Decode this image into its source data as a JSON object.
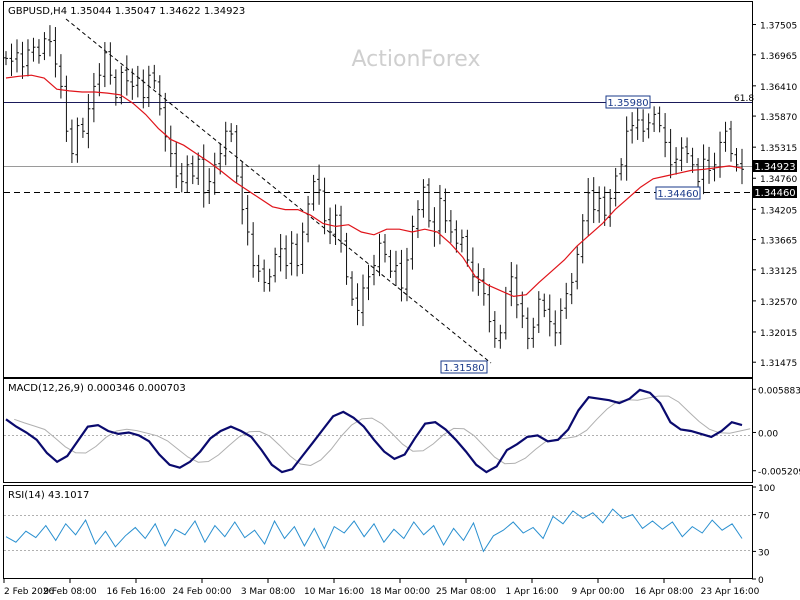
{
  "chart_data": {
    "type": "ohlc",
    "symbol_header": "GBPUSD,H4  1.35044 1.35047 1.34622 1.34923",
    "watermark": "ActionForex",
    "price_axis": {
      "range": [
        1.313,
        1.378
      ],
      "ticks": [
        "1.37505",
        "1.36965",
        "1.36410",
        "1.35870",
        "1.35315",
        "1.34760",
        "1.34205",
        "1.33665",
        "1.33125",
        "1.32570",
        "1.32015",
        "1.31475"
      ]
    },
    "x_labels": [
      "2 Feb 2026",
      "9 Feb 08:00",
      "16 Feb 16:00",
      "24 Feb 00:00",
      "3 Mar 08:00",
      "10 Mar 16:00",
      "18 Mar 00:00",
      "25 Mar 08:00",
      "1 Apr 16:00",
      "9 Apr 00:00",
      "16 Apr 08:00",
      "23 Apr 16:00"
    ],
    "series": [
      {
        "name": "close",
        "color": "#000000",
        "values": [
          1.369,
          1.3685,
          1.37,
          1.3675,
          1.3705,
          1.371,
          1.3695,
          1.3725,
          1.372,
          1.368,
          1.364,
          1.356,
          1.352,
          1.357,
          1.356,
          1.36,
          1.364,
          1.366,
          1.37,
          1.366,
          1.362,
          1.3665,
          1.365,
          1.364,
          1.3655,
          1.362,
          1.366,
          1.365,
          1.36,
          1.355,
          1.352,
          1.348,
          1.347,
          1.35,
          1.348,
          1.351,
          1.345,
          1.347,
          1.35,
          1.352,
          1.356,
          1.3555,
          1.348,
          1.342,
          1.338,
          1.332,
          1.331,
          1.329,
          1.33,
          1.334,
          1.335,
          1.332,
          1.336,
          1.332,
          1.338,
          1.343,
          1.347,
          1.3455,
          1.34,
          1.338,
          1.341,
          1.336,
          1.33,
          1.326,
          1.324,
          1.328,
          1.33,
          1.332,
          1.336,
          1.334,
          1.331,
          1.332,
          1.328,
          1.333,
          1.339,
          1.342,
          1.346,
          1.34,
          1.338,
          1.344,
          1.34,
          1.338,
          1.336,
          1.337,
          1.333,
          1.33,
          1.329,
          1.327,
          1.322,
          1.319,
          1.32,
          1.327,
          1.33,
          1.325,
          1.323,
          1.319,
          1.321,
          1.326,
          1.324,
          1.322,
          1.32,
          1.324,
          1.327,
          1.329,
          1.334,
          1.34,
          1.345,
          1.342,
          1.344,
          1.341,
          1.344,
          1.348,
          1.35,
          1.356,
          1.357,
          1.358,
          1.356,
          1.3575,
          1.359,
          1.357,
          1.354,
          1.35,
          1.351,
          1.353,
          1.352,
          1.35,
          1.347,
          1.351,
          1.349,
          1.35,
          1.354,
          1.356,
          1.352,
          1.35,
          1.3492
        ]
      },
      {
        "name": "sma",
        "color": "#e0141a",
        "values": [
          1.3655,
          1.3658,
          1.366,
          1.3655,
          1.3635,
          1.3632,
          1.363,
          1.363,
          1.3628,
          1.3625,
          1.361,
          1.359,
          1.3565,
          1.3545,
          1.3535,
          1.352,
          1.3505,
          1.3488,
          1.347,
          1.3455,
          1.344,
          1.3425,
          1.342,
          1.342,
          1.341,
          1.3395,
          1.339,
          1.3393,
          1.338,
          1.3375,
          1.3385,
          1.3385,
          1.338,
          1.3385,
          1.338,
          1.336,
          1.3335,
          1.33,
          1.3285,
          1.3275,
          1.3265,
          1.3268,
          1.329,
          1.331,
          1.333,
          1.3355,
          1.3375,
          1.3395,
          1.342,
          1.344,
          1.346,
          1.3475,
          1.348,
          1.3485,
          1.349,
          1.3492,
          1.3495,
          1.3498,
          1.3494
        ]
      }
    ],
    "levels": [
      {
        "label": "61.8",
        "value": 1.35955,
        "style": "solid"
      },
      {
        "label": "1.34460",
        "value": 1.3446,
        "style": "dashed"
      },
      {
        "label": "1.34923",
        "value": 1.34923,
        "style": "solid-grey"
      }
    ],
    "annotations": [
      "1.35980",
      "1.34460",
      "1.31580"
    ],
    "current_price": "1.34923",
    "macd": {
      "header": "MACD(12,26,9) 0.000346 0.000703",
      "ticks": [
        "0.005883",
        "0.00",
        "-0.005209"
      ],
      "range": [
        -0.0062,
        0.0066
      ],
      "values": [
        0.0018,
        0.0008,
        0.0,
        -0.001,
        -0.0028,
        -0.004,
        -0.0032,
        -0.0012,
        0.0008,
        0.001,
        0.0002,
        -0.0002,
        0.0,
        -0.0004,
        -0.0012,
        -0.003,
        -0.0044,
        -0.0048,
        -0.004,
        -0.0026,
        -0.0008,
        0.0002,
        0.0008,
        0.0002,
        -0.0006,
        -0.0024,
        -0.0044,
        -0.0054,
        -0.005,
        -0.0032,
        -0.0014,
        0.0004,
        0.0022,
        0.0028,
        0.002,
        0.0008,
        -0.001,
        -0.0026,
        -0.0036,
        -0.003,
        -0.0008,
        0.0012,
        0.0014,
        0.0004,
        -0.001,
        -0.0026,
        -0.0044,
        -0.0054,
        -0.0046,
        -0.0024,
        -0.0016,
        -0.0006,
        -0.0004,
        -0.0012,
        -0.001,
        0.0004,
        0.003,
        0.0048,
        0.0046,
        0.0044,
        0.004,
        0.0046,
        0.0058,
        0.0054,
        0.004,
        0.0014,
        0.0004,
        0.0002,
        -0.0002,
        -0.0006,
        0.0002,
        0.0014,
        0.001
      ]
    },
    "rsi": {
      "header": "RSI(14) 43.1017",
      "ticks": [
        "100",
        "70",
        "30",
        "0"
      ],
      "values": [
        46,
        40,
        52,
        45,
        58,
        42,
        60,
        48,
        64,
        38,
        52,
        35,
        47,
        56,
        44,
        60,
        36,
        54,
        48,
        63,
        40,
        58,
        46,
        62,
        45,
        53,
        38,
        63,
        44,
        57,
        36,
        55,
        33,
        57,
        50,
        63,
        46,
        60,
        40,
        54,
        44,
        62,
        48,
        58,
        37,
        55,
        42,
        61,
        30,
        47,
        53,
        62,
        50,
        56,
        44,
        68,
        60,
        74,
        66,
        72,
        61,
        76,
        66,
        70,
        55,
        63,
        54,
        62,
        46,
        57,
        50,
        64,
        53,
        60,
        44
      ]
    }
  }
}
